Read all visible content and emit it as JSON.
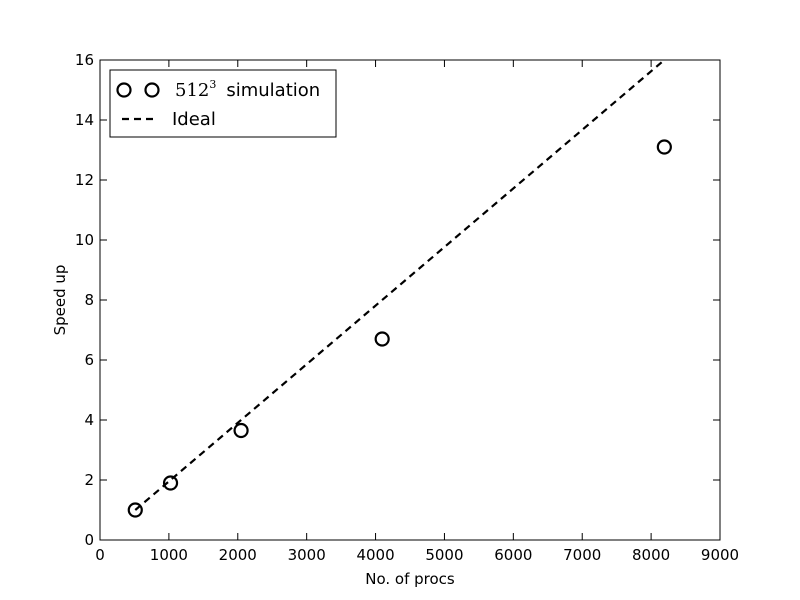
{
  "chart_data": {
    "type": "scatter",
    "xlabel": "No. of procs",
    "ylabel": "Speed up",
    "xlim": [
      0,
      9000
    ],
    "ylim": [
      0,
      16
    ],
    "xticks": [
      0,
      1000,
      2000,
      3000,
      4000,
      5000,
      6000,
      7000,
      8000,
      9000
    ],
    "yticks": [
      0,
      2,
      4,
      6,
      8,
      10,
      12,
      14,
      16
    ],
    "grid": false,
    "legend_position": "top-left",
    "series": [
      {
        "name": "512",
        "name_superscript": "3",
        "name_suffix": "simulation",
        "marker": "open-circle",
        "color": "#000000",
        "x": [
          512,
          1024,
          2048,
          4096,
          8192
        ],
        "y": [
          1.0,
          1.9,
          3.65,
          6.7,
          13.1
        ]
      },
      {
        "name": "Ideal",
        "style": "dashed-line",
        "color": "#000000",
        "x": [
          512,
          8192
        ],
        "y": [
          1,
          16
        ]
      }
    ]
  }
}
